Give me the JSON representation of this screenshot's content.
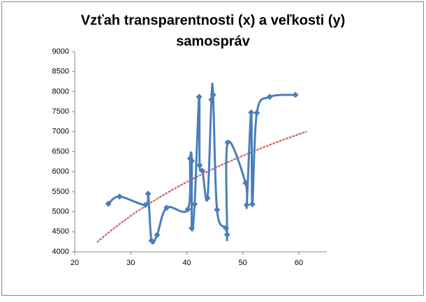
{
  "chart_data": {
    "type": "scatter",
    "title": [
      "Vzťah transparentnosti (x) a veľkosti (y)",
      "samospráv"
    ],
    "series": [
      {
        "color": "#4a7ebb",
        "x": [
          26.0,
          28.0,
          32.6,
          33.1,
          33.7,
          34.7,
          36.4,
          40.2,
          40.6,
          40.9,
          40.9,
          41.4,
          42.2,
          42.3,
          42.8,
          43.7,
          44.4,
          44.7,
          45.4,
          47.0,
          47.2,
          47.3,
          50.5,
          50.7,
          51.5,
          51.7,
          52.5,
          54.8,
          59.4
        ],
        "values": [
          5200,
          5380,
          5170,
          5450,
          4280,
          4420,
          5100,
          5060,
          6330,
          6270,
          4590,
          5190,
          7870,
          6160,
          6020,
          5340,
          7800,
          7920,
          5050,
          4590,
          4430,
          6730,
          5720,
          5170,
          7480,
          5190,
          7470,
          7870,
          7920
        ]
      }
    ],
    "trendline": {
      "type": "logarithmic",
      "color": "#e00000"
    },
    "xlim": [
      20,
      65
    ],
    "xticks": [
      20,
      30,
      40,
      50,
      60
    ],
    "ylim": [
      4000,
      9000
    ],
    "yticks": [
      4000,
      4500,
      5000,
      5500,
      6000,
      6500,
      7000,
      7500,
      8000,
      8500,
      9000
    ],
    "grid": false
  }
}
